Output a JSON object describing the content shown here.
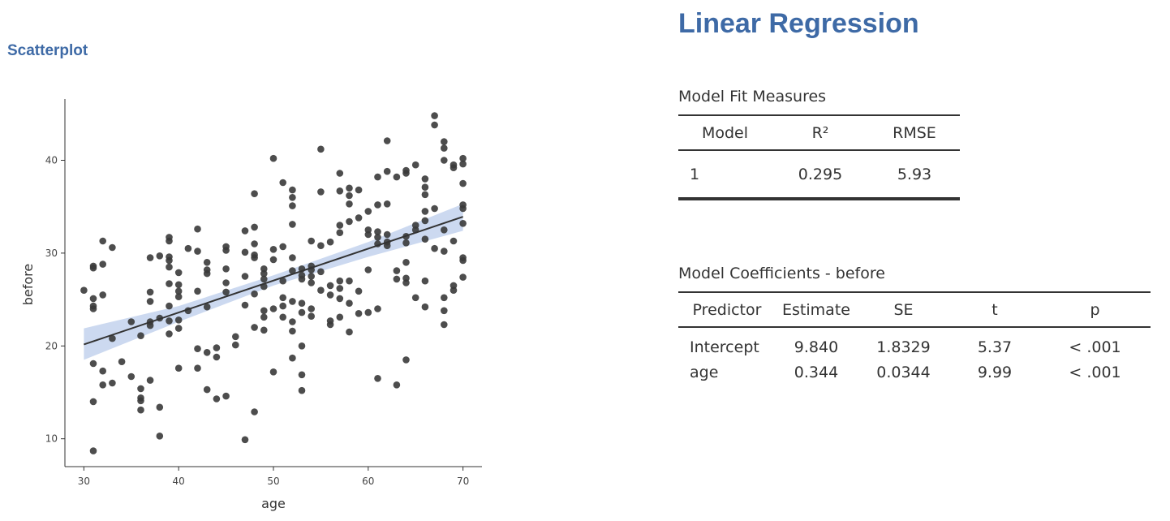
{
  "left_heading": "Scatterplot",
  "right_title": "Linear Regression",
  "fit_table": {
    "caption": "Model Fit Measures",
    "headers": [
      "Model",
      "R²",
      "RMSE"
    ],
    "rows": [
      [
        "1",
        "0.295",
        "5.93"
      ]
    ]
  },
  "coef_table": {
    "caption": "Model Coefficients - before",
    "headers": [
      "Predictor",
      "Estimate",
      "SE",
      "t",
      "p"
    ],
    "rows": [
      [
        "Intercept",
        "9.840",
        "1.8329",
        "5.37",
        "< .001"
      ],
      [
        "age",
        "0.344",
        "0.0344",
        "9.99",
        "< .001"
      ]
    ]
  },
  "chart_data": {
    "type": "scatter",
    "title": "",
    "xlabel": "age",
    "ylabel": "before",
    "xlim": [
      28,
      72
    ],
    "ylim": [
      7,
      46.6
    ],
    "xticks": [
      30,
      40,
      50,
      60,
      70
    ],
    "yticks": [
      10,
      20,
      30,
      40
    ],
    "grid": false,
    "colors": {
      "point": "#3a3a3a",
      "line": "#333333",
      "band": "#c7d5ee"
    },
    "regression": {
      "intercept": 9.84,
      "slope": 0.344,
      "x_range": [
        30,
        70
      ]
    },
    "confidence_band": [
      {
        "x": 30,
        "lo": 18.5,
        "hi": 21.9
      },
      {
        "x": 40,
        "lo": 22.6,
        "hi": 24.3
      },
      {
        "x": 50,
        "lo": 26.5,
        "hi": 27.6
      },
      {
        "x": 60,
        "lo": 29.6,
        "hi": 31.2
      },
      {
        "x": 70,
        "lo": 32.4,
        "hi": 35.3
      }
    ],
    "points": [
      [
        30,
        26.0
      ],
      [
        31,
        28.4
      ],
      [
        31,
        28.6
      ],
      [
        31,
        25.1
      ],
      [
        31,
        24.3
      ],
      [
        31,
        24.0
      ],
      [
        31,
        18.1
      ],
      [
        31,
        14.0
      ],
      [
        31,
        8.7
      ],
      [
        32,
        31.3
      ],
      [
        32,
        28.8
      ],
      [
        32,
        25.5
      ],
      [
        32,
        17.3
      ],
      [
        32,
        15.8
      ],
      [
        33,
        30.6
      ],
      [
        33,
        20.8
      ],
      [
        33,
        16.0
      ],
      [
        34,
        18.3
      ],
      [
        35,
        22.6
      ],
      [
        35,
        16.7
      ],
      [
        36,
        21.1
      ],
      [
        36,
        15.4
      ],
      [
        36,
        14.4
      ],
      [
        36,
        14.1
      ],
      [
        36,
        13.1
      ],
      [
        37,
        29.5
      ],
      [
        37,
        25.8
      ],
      [
        37,
        24.8
      ],
      [
        37,
        22.6
      ],
      [
        37,
        22.2
      ],
      [
        37,
        16.3
      ],
      [
        38,
        29.7
      ],
      [
        38,
        23.0
      ],
      [
        38,
        13.4
      ],
      [
        38,
        10.3
      ],
      [
        39,
        31.7
      ],
      [
        39,
        31.3
      ],
      [
        39,
        29.6
      ],
      [
        39,
        29.2
      ],
      [
        39,
        28.5
      ],
      [
        39,
        26.7
      ],
      [
        39,
        24.3
      ],
      [
        39,
        22.7
      ],
      [
        39,
        21.3
      ],
      [
        40,
        27.9
      ],
      [
        40,
        26.6
      ],
      [
        40,
        25.9
      ],
      [
        40,
        25.3
      ],
      [
        40,
        22.8
      ],
      [
        40,
        21.9
      ],
      [
        40,
        17.6
      ],
      [
        41,
        30.5
      ],
      [
        41,
        23.8
      ],
      [
        42,
        32.6
      ],
      [
        42,
        30.2
      ],
      [
        42,
        25.9
      ],
      [
        42,
        19.7
      ],
      [
        42,
        17.6
      ],
      [
        43,
        29.0
      ],
      [
        43,
        28.2
      ],
      [
        43,
        27.8
      ],
      [
        43,
        24.2
      ],
      [
        43,
        19.3
      ],
      [
        43,
        15.3
      ],
      [
        44,
        19.8
      ],
      [
        44,
        18.8
      ],
      [
        44,
        14.3
      ],
      [
        45,
        30.7
      ],
      [
        45,
        30.3
      ],
      [
        45,
        28.3
      ],
      [
        45,
        26.8
      ],
      [
        45,
        25.8
      ],
      [
        45,
        14.6
      ],
      [
        46,
        21.0
      ],
      [
        46,
        20.1
      ],
      [
        47,
        32.4
      ],
      [
        47,
        30.1
      ],
      [
        47,
        27.5
      ],
      [
        47,
        24.4
      ],
      [
        47,
        9.9
      ],
      [
        48,
        36.4
      ],
      [
        48,
        32.8
      ],
      [
        48,
        31.0
      ],
      [
        48,
        29.8
      ],
      [
        48,
        29.5
      ],
      [
        48,
        25.6
      ],
      [
        48,
        22.0
      ],
      [
        48,
        12.9
      ],
      [
        49,
        28.3
      ],
      [
        49,
        27.8
      ],
      [
        49,
        27.2
      ],
      [
        49,
        26.4
      ],
      [
        49,
        23.8
      ],
      [
        49,
        23.1
      ],
      [
        49,
        21.7
      ],
      [
        50,
        40.2
      ],
      [
        50,
        30.4
      ],
      [
        50,
        29.3
      ],
      [
        50,
        24.0
      ],
      [
        50,
        17.2
      ],
      [
        51,
        37.6
      ],
      [
        51,
        30.7
      ],
      [
        51,
        27.0
      ],
      [
        51,
        25.2
      ],
      [
        51,
        24.3
      ],
      [
        51,
        23.1
      ],
      [
        52,
        36.8
      ],
      [
        52,
        36.0
      ],
      [
        52,
        35.1
      ],
      [
        52,
        33.1
      ],
      [
        52,
        29.5
      ],
      [
        52,
        28.1
      ],
      [
        52,
        24.8
      ],
      [
        52,
        22.6
      ],
      [
        52,
        21.6
      ],
      [
        52,
        18.7
      ],
      [
        53,
        28.3
      ],
      [
        53,
        27.6
      ],
      [
        53,
        27.2
      ],
      [
        53,
        24.6
      ],
      [
        53,
        23.6
      ],
      [
        53,
        20.0
      ],
      [
        53,
        16.9
      ],
      [
        53,
        15.2
      ],
      [
        54,
        31.3
      ],
      [
        54,
        28.6
      ],
      [
        54,
        28.2
      ],
      [
        54,
        27.5
      ],
      [
        54,
        26.8
      ],
      [
        54,
        24.0
      ],
      [
        54,
        23.2
      ],
      [
        55,
        41.2
      ],
      [
        55,
        36.6
      ],
      [
        55,
        30.8
      ],
      [
        55,
        28.0
      ],
      [
        55,
        26.0
      ],
      [
        56,
        31.2
      ],
      [
        56,
        26.5
      ],
      [
        56,
        25.5
      ],
      [
        56,
        22.7
      ],
      [
        56,
        22.3
      ],
      [
        57,
        38.6
      ],
      [
        57,
        36.7
      ],
      [
        57,
        33.0
      ],
      [
        57,
        32.2
      ],
      [
        57,
        27.0
      ],
      [
        57,
        26.2
      ],
      [
        57,
        25.1
      ],
      [
        57,
        23.1
      ],
      [
        58,
        37.0
      ],
      [
        58,
        36.2
      ],
      [
        58,
        35.3
      ],
      [
        58,
        33.4
      ],
      [
        58,
        27.0
      ],
      [
        58,
        24.6
      ],
      [
        58,
        21.5
      ],
      [
        59,
        36.8
      ],
      [
        59,
        33.8
      ],
      [
        59,
        25.9
      ],
      [
        59,
        23.5
      ],
      [
        60,
        34.5
      ],
      [
        60,
        32.5
      ],
      [
        60,
        32.0
      ],
      [
        60,
        28.2
      ],
      [
        60,
        23.6
      ],
      [
        61,
        38.2
      ],
      [
        61,
        35.2
      ],
      [
        61,
        32.3
      ],
      [
        61,
        31.7
      ],
      [
        61,
        31.0
      ],
      [
        61,
        24.0
      ],
      [
        61,
        16.5
      ],
      [
        62,
        42.1
      ],
      [
        62,
        38.8
      ],
      [
        62,
        35.3
      ],
      [
        62,
        32.0
      ],
      [
        62,
        31.2
      ],
      [
        62,
        30.8
      ],
      [
        63,
        38.2
      ],
      [
        63,
        28.1
      ],
      [
        63,
        27.2
      ],
      [
        63,
        15.8
      ],
      [
        64,
        38.9
      ],
      [
        64,
        38.6
      ],
      [
        64,
        31.8
      ],
      [
        64,
        31.1
      ],
      [
        64,
        29.0
      ],
      [
        64,
        27.3
      ],
      [
        64,
        26.8
      ],
      [
        64,
        18.5
      ],
      [
        65,
        39.5
      ],
      [
        65,
        33.0
      ],
      [
        65,
        32.5
      ],
      [
        65,
        25.2
      ],
      [
        66,
        38.0
      ],
      [
        66,
        37.1
      ],
      [
        66,
        36.3
      ],
      [
        66,
        34.5
      ],
      [
        66,
        33.5
      ],
      [
        66,
        31.5
      ],
      [
        66,
        27.0
      ],
      [
        66,
        24.2
      ],
      [
        67,
        44.8
      ],
      [
        67,
        43.8
      ],
      [
        67,
        34.8
      ],
      [
        67,
        30.5
      ],
      [
        68,
        42.0
      ],
      [
        68,
        41.3
      ],
      [
        68,
        40.0
      ],
      [
        68,
        32.5
      ],
      [
        68,
        30.2
      ],
      [
        68,
        25.2
      ],
      [
        68,
        23.8
      ],
      [
        68,
        22.3
      ],
      [
        69,
        39.5
      ],
      [
        69,
        39.2
      ],
      [
        69,
        31.3
      ],
      [
        69,
        26.5
      ],
      [
        69,
        26.0
      ],
      [
        70,
        40.2
      ],
      [
        70,
        39.6
      ],
      [
        70,
        37.5
      ],
      [
        70,
        35.2
      ],
      [
        70,
        34.8
      ],
      [
        70,
        33.2
      ],
      [
        70,
        29.5
      ],
      [
        70,
        29.2
      ],
      [
        70,
        27.4
      ]
    ]
  }
}
